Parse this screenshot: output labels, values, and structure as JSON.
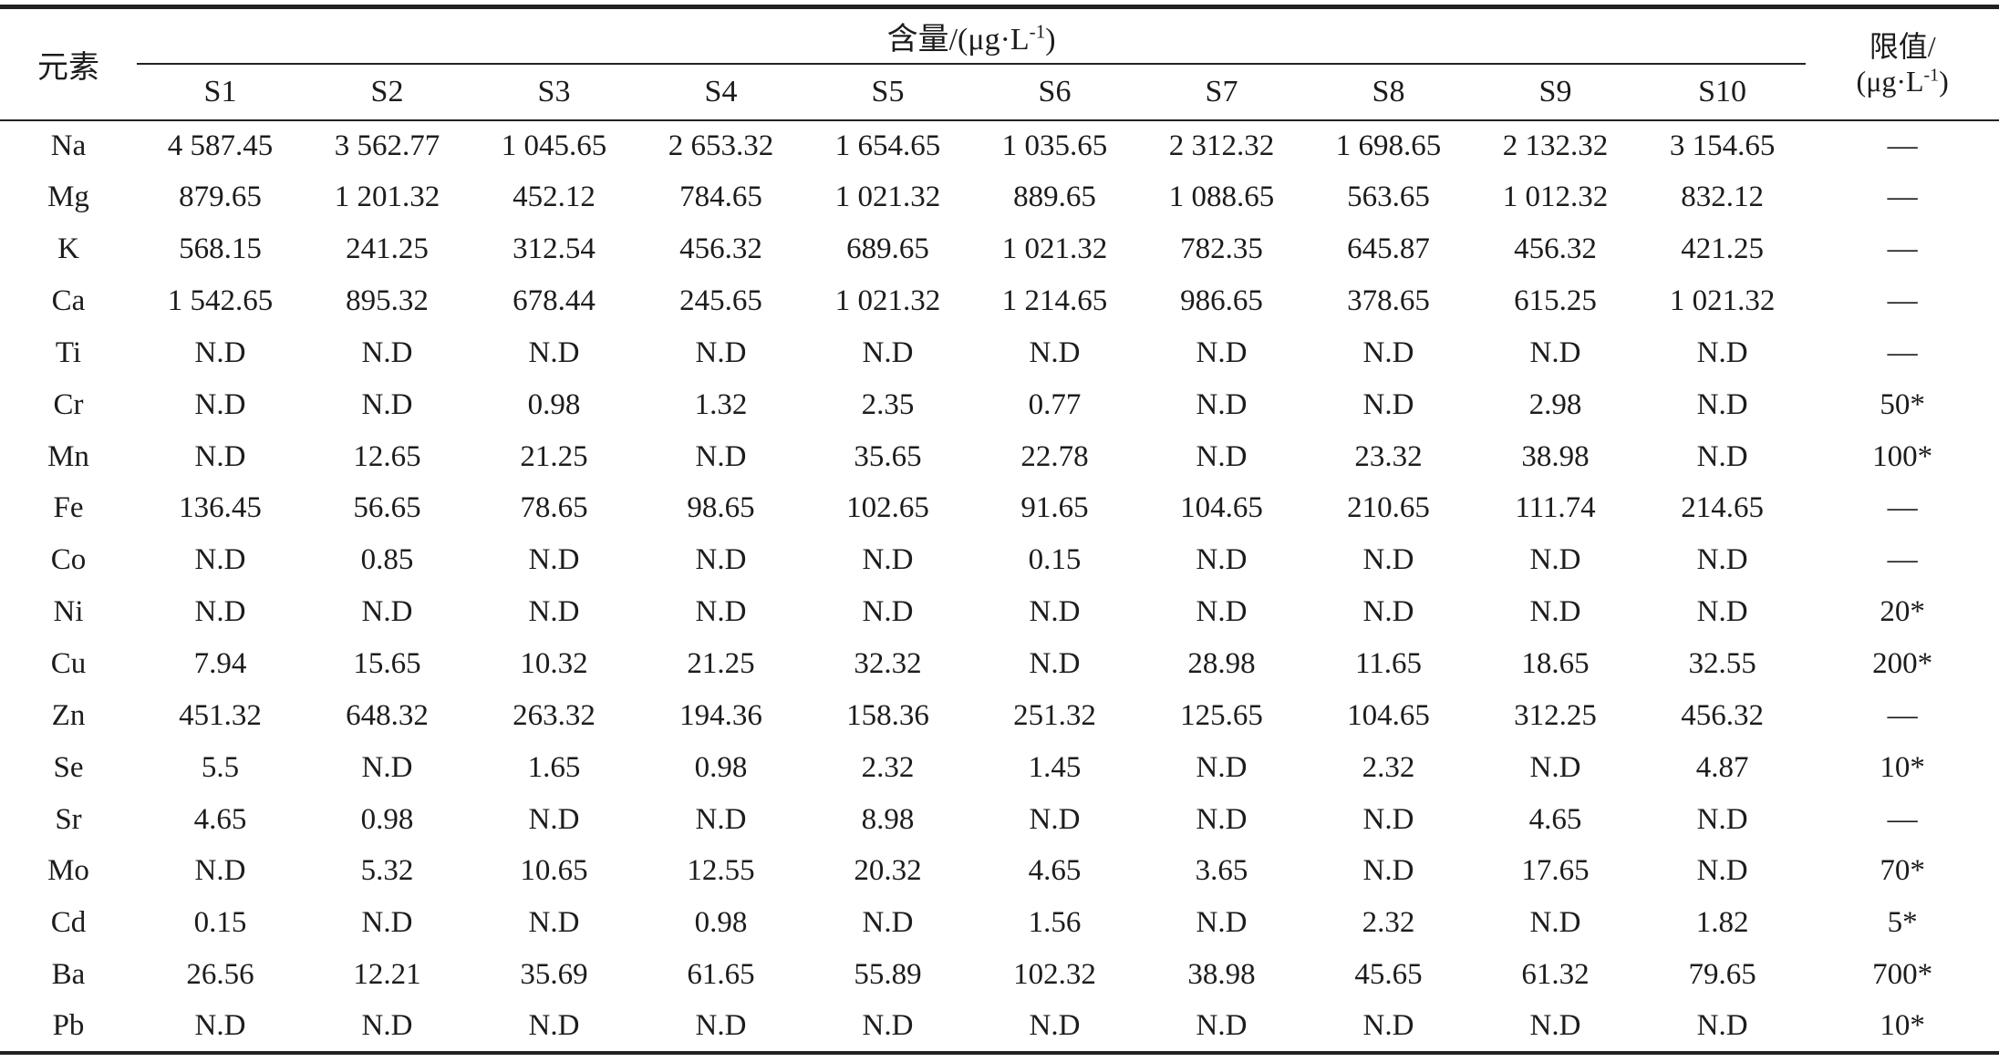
{
  "table": {
    "element_header": "元素",
    "content_header": {
      "prefix": "含量/(μg·L",
      "sup": "-1",
      "suffix": ")"
    },
    "limit_header": {
      "line1": "限值/",
      "line2_prefix": "(μg·L",
      "sup": "-1",
      "line2_suffix": ")"
    },
    "sample_columns": [
      "S1",
      "S2",
      "S3",
      "S4",
      "S5",
      "S6",
      "S7",
      "S8",
      "S9",
      "S10"
    ],
    "not_detected_label": "N.D",
    "no_limit_label": "—",
    "rows": [
      {
        "element": "Na",
        "values": [
          "4 587.45",
          "3 562.77",
          "1 045.65",
          "2 653.32",
          "1 654.65",
          "1 035.65",
          "2 312.32",
          "1 698.65",
          "2 132.32",
          "3 154.65"
        ],
        "limit": "—"
      },
      {
        "element": "Mg",
        "values": [
          "879.65",
          "1 201.32",
          "452.12",
          "784.65",
          "1 021.32",
          "889.65",
          "1 088.65",
          "563.65",
          "1 012.32",
          "832.12"
        ],
        "limit": "—"
      },
      {
        "element": "K",
        "values": [
          "568.15",
          "241.25",
          "312.54",
          "456.32",
          "689.65",
          "1 021.32",
          "782.35",
          "645.87",
          "456.32",
          "421.25"
        ],
        "limit": "—"
      },
      {
        "element": "Ca",
        "values": [
          "1 542.65",
          "895.32",
          "678.44",
          "245.65",
          "1 021.32",
          "1 214.65",
          "986.65",
          "378.65",
          "615.25",
          "1 021.32"
        ],
        "limit": "—"
      },
      {
        "element": "Ti",
        "values": [
          "N.D",
          "N.D",
          "N.D",
          "N.D",
          "N.D",
          "N.D",
          "N.D",
          "N.D",
          "N.D",
          "N.D"
        ],
        "limit": "—"
      },
      {
        "element": "Cr",
        "values": [
          "N.D",
          "N.D",
          "0.98",
          "1.32",
          "2.35",
          "0.77",
          "N.D",
          "N.D",
          "2.98",
          "N.D"
        ],
        "limit": "50*"
      },
      {
        "element": "Mn",
        "values": [
          "N.D",
          "12.65",
          "21.25",
          "N.D",
          "35.65",
          "22.78",
          "N.D",
          "23.32",
          "38.98",
          "N.D"
        ],
        "limit": "100*"
      },
      {
        "element": "Fe",
        "values": [
          "136.45",
          "56.65",
          "78.65",
          "98.65",
          "102.65",
          "91.65",
          "104.65",
          "210.65",
          "111.74",
          "214.65"
        ],
        "limit": "—"
      },
      {
        "element": "Co",
        "values": [
          "N.D",
          "0.85",
          "N.D",
          "N.D",
          "N.D",
          "0.15",
          "N.D",
          "N.D",
          "N.D",
          "N.D"
        ],
        "limit": "—"
      },
      {
        "element": "Ni",
        "values": [
          "N.D",
          "N.D",
          "N.D",
          "N.D",
          "N.D",
          "N.D",
          "N.D",
          "N.D",
          "N.D",
          "N.D"
        ],
        "limit": "20*"
      },
      {
        "element": "Cu",
        "values": [
          "7.94",
          "15.65",
          "10.32",
          "21.25",
          "32.32",
          "N.D",
          "28.98",
          "11.65",
          "18.65",
          "32.55"
        ],
        "limit": "200*"
      },
      {
        "element": "Zn",
        "values": [
          "451.32",
          "648.32",
          "263.32",
          "194.36",
          "158.36",
          "251.32",
          "125.65",
          "104.65",
          "312.25",
          "456.32"
        ],
        "limit": "—"
      },
      {
        "element": "Se",
        "values": [
          "5.5",
          "N.D",
          "1.65",
          "0.98",
          "2.32",
          "1.45",
          "N.D",
          "2.32",
          "N.D",
          "4.87"
        ],
        "limit": "10*"
      },
      {
        "element": "Sr",
        "values": [
          "4.65",
          "0.98",
          "N.D",
          "N.D",
          "8.98",
          "N.D",
          "N.D",
          "N.D",
          "4.65",
          "N.D"
        ],
        "limit": "—"
      },
      {
        "element": "Mo",
        "values": [
          "N.D",
          "5.32",
          "10.65",
          "12.55",
          "20.32",
          "4.65",
          "3.65",
          "N.D",
          "17.65",
          "N.D"
        ],
        "limit": "70*"
      },
      {
        "element": "Cd",
        "values": [
          "0.15",
          "N.D",
          "N.D",
          "0.98",
          "N.D",
          "1.56",
          "N.D",
          "2.32",
          "N.D",
          "1.82"
        ],
        "limit": "5*"
      },
      {
        "element": "Ba",
        "values": [
          "26.56",
          "12.21",
          "35.69",
          "61.65",
          "55.89",
          "102.32",
          "38.98",
          "45.65",
          "61.32",
          "79.65"
        ],
        "limit": "700*"
      },
      {
        "element": "Pb",
        "values": [
          "N.D",
          "N.D",
          "N.D",
          "N.D",
          "N.D",
          "N.D",
          "N.D",
          "N.D",
          "N.D",
          "N.D"
        ],
        "limit": "10*"
      }
    ]
  }
}
